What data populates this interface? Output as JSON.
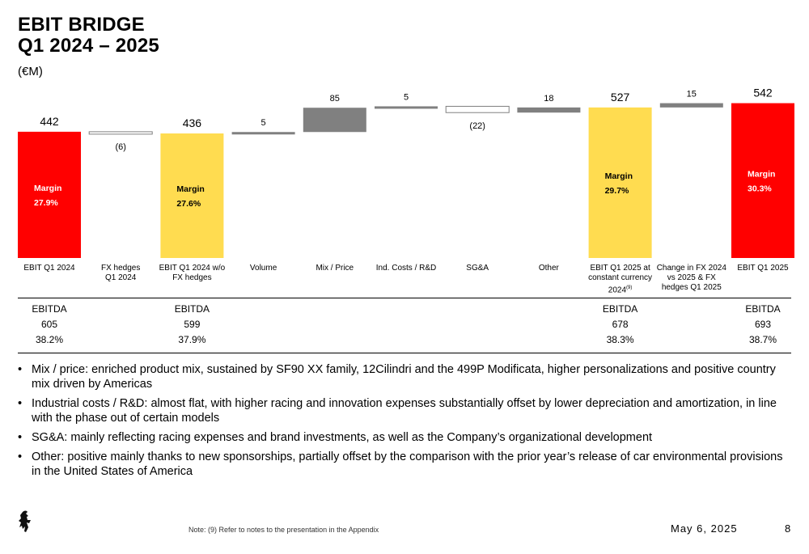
{
  "header": {
    "title_line1": "EBIT BRIDGE",
    "title_line2": "Q1 2024 – 2025",
    "unit": "(€M)"
  },
  "colors": {
    "red": "#ff0000",
    "yellow": "#ffdc50",
    "gray": "#808080",
    "negative_fill": "#ffffff"
  },
  "chart_data": {
    "type": "bar",
    "subtype": "waterfall",
    "categories": [
      "EBIT Q1 2024",
      "FX hedges Q1 2024",
      "EBIT Q1 2024 w/o FX hedges",
      "Volume",
      "Mix / Price",
      "Ind. Costs / R&D",
      "SG&A",
      "Other",
      "EBIT Q1 2025 at constant currency 2024",
      "Change in FX 2024 vs 2025 & FX hedges Q1 2025",
      "EBIT Q1 2025"
    ],
    "bars": [
      {
        "label": "EBIT Q1 2024",
        "kind": "total",
        "value": 442,
        "display": "442",
        "color": "red",
        "margin_title": "Margin",
        "margin_value": "27.9%"
      },
      {
        "label": "FX hedges\nQ1 2024",
        "kind": "delta",
        "value": -6,
        "display": "(6)"
      },
      {
        "label": "EBIT Q1 2024 w/o\nFX hedges",
        "kind": "total",
        "value": 436,
        "display": "436",
        "color": "yellow",
        "margin_title": "Margin",
        "margin_value": "27.6%"
      },
      {
        "label": "Volume",
        "kind": "delta",
        "value": 5,
        "display": "5"
      },
      {
        "label": "Mix / Price",
        "kind": "delta",
        "value": 85,
        "display": "85"
      },
      {
        "label": "Ind. Costs / R&D",
        "kind": "delta",
        "value": 5,
        "display": "5"
      },
      {
        "label": "SG&A",
        "kind": "delta",
        "value": -22,
        "display": "(22)"
      },
      {
        "label": "Other",
        "kind": "delta",
        "value": 18,
        "display": "18"
      },
      {
        "label": "EBIT Q1 2025 at\nconstant currency\n2024",
        "label_sup": "(9)",
        "kind": "total",
        "value": 527,
        "display": "527",
        "color": "yellow",
        "margin_title": "Margin",
        "margin_value": "29.7%"
      },
      {
        "label": "Change in FX 2024\nvs 2025 & FX\nhedges Q1 2025",
        "kind": "delta",
        "value": 15,
        "display": "15"
      },
      {
        "label": "EBIT Q1 2025",
        "kind": "total",
        "value": 542,
        "display": "542",
        "color": "red",
        "margin_title": "Margin",
        "margin_value": "30.3%"
      }
    ]
  },
  "ebitda": [
    {
      "index": 0,
      "label": "EBITDA",
      "value": "605",
      "margin": "38.2%"
    },
    {
      "index": 2,
      "label": "EBITDA",
      "value": "599",
      "margin": "37.9%"
    },
    {
      "index": 8,
      "label": "EBITDA",
      "value": "678",
      "margin": "38.3%"
    },
    {
      "index": 10,
      "label": "EBITDA",
      "value": "693",
      "margin": "38.7%"
    }
  ],
  "bullets": [
    "Mix / price: enriched product mix, sustained by SF90 XX family, 12Cilindri and the 499P Modificata, higher personalizations and positive country mix driven by Americas",
    "Industrial costs / R&D: almost flat, with higher racing and innovation expenses substantially offset by lower depreciation and amortization, in line with the phase out of certain models",
    "SG&A: mainly reflecting racing expenses and brand investments, as well as the Company’s organizational development",
    "Other: positive mainly thanks to new sponsorships, partially offset by the comparison with the prior year’s release of car environmental provisions in the United States of America"
  ],
  "footer": {
    "logo": "prancing-horse-logo",
    "note": "Note: (9) Refer to notes to the presentation in the Appendix",
    "date": "May 6, 2025",
    "page": "8"
  }
}
